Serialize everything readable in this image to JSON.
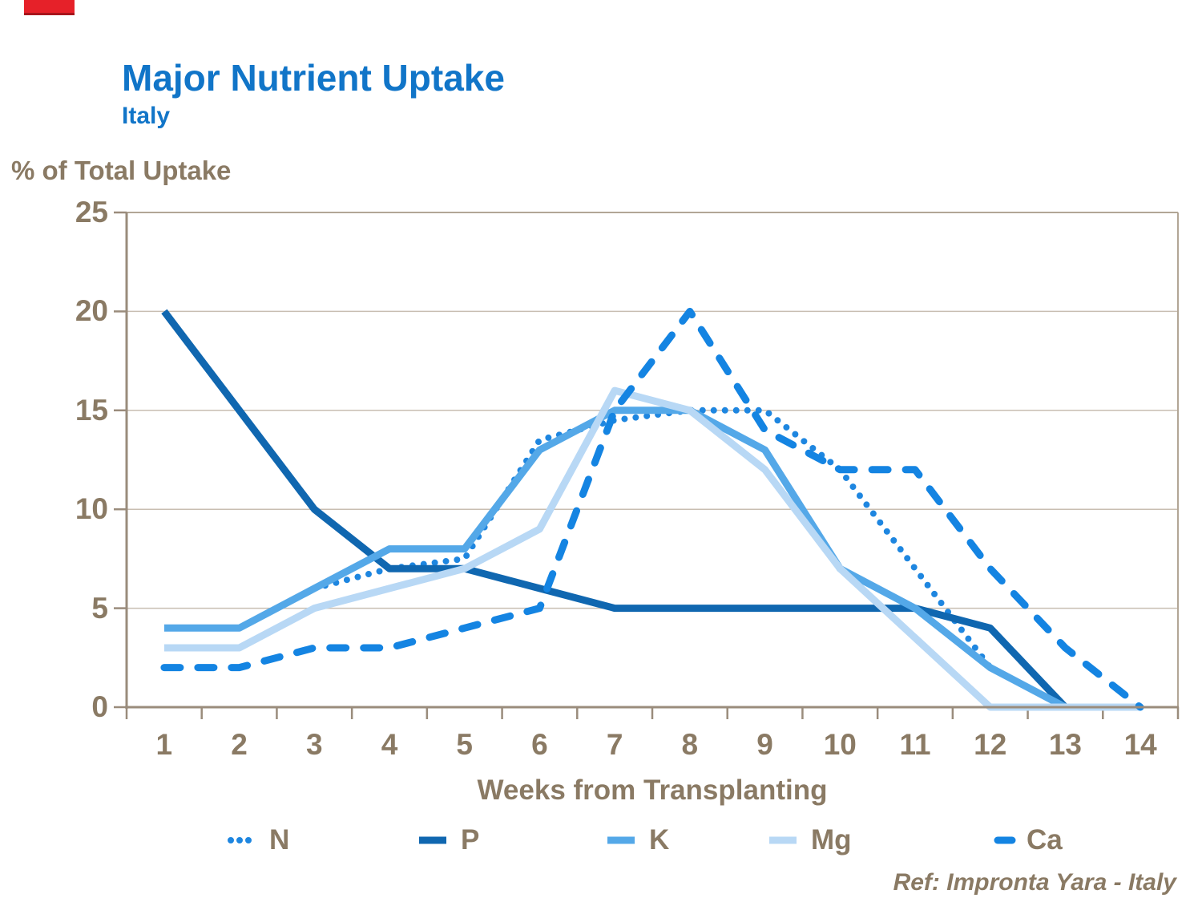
{
  "header": {
    "title": "Major Nutrient Uptake",
    "subtitle": "Italy"
  },
  "axes": {
    "y_title": "% of Total Uptake",
    "x_title": "Weeks from Transplanting",
    "y_ticks": [
      0,
      5,
      10,
      15,
      20,
      25
    ],
    "x_ticks": [
      1,
      2,
      3,
      4,
      5,
      6,
      7,
      8,
      9,
      10,
      11,
      12,
      13,
      14
    ]
  },
  "footer": {
    "ref": "Ref: Impronta Yara - Italy"
  },
  "colors": {
    "title_blue": "#1175c8",
    "label_tan": "#8a7a64",
    "axis_line": "#9a8c7c",
    "plot_border": "#b2a696",
    "gridline": "#c8beb2",
    "red_bar": "#e62129",
    "n_blue": "#1e86e0",
    "p_dark_blue": "#1067b0",
    "k_blue": "#54a8e8",
    "mg_light_blue": "#b8d8f5",
    "ca_blue": "#1484e2"
  },
  "chart_data": {
    "type": "line",
    "title": "Major Nutrient Uptake",
    "subtitle": "Italy",
    "xlabel": "Weeks from Transplanting",
    "ylabel": "% of Total Uptake",
    "xlim": [
      0.5,
      14.5
    ],
    "ylim": [
      0,
      25
    ],
    "grid": "horizontal gridlines every 5",
    "legend_position": "bottom",
    "series": [
      {
        "name": "N",
        "style": "dotted",
        "color": "#1e86e0",
        "points": [
          [
            3,
            6
          ],
          [
            4,
            7
          ],
          [
            5,
            7.5
          ],
          [
            6,
            13.5
          ],
          [
            7,
            14.5
          ],
          [
            8,
            15
          ],
          [
            9,
            15
          ],
          [
            10,
            12
          ],
          [
            11,
            7
          ],
          [
            12,
            2
          ],
          [
            13,
            0
          ]
        ]
      },
      {
        "name": "P",
        "style": "solid",
        "color": "#1067b0",
        "points": [
          [
            1,
            20
          ],
          [
            2,
            15
          ],
          [
            3,
            10
          ],
          [
            4,
            7
          ],
          [
            5,
            7
          ],
          [
            6,
            6
          ],
          [
            7,
            5
          ],
          [
            8,
            5
          ],
          [
            9,
            5
          ],
          [
            10,
            5
          ],
          [
            11,
            5
          ],
          [
            12,
            4
          ],
          [
            13,
            0
          ]
        ]
      },
      {
        "name": "K",
        "style": "solid",
        "color": "#54a8e8",
        "points": [
          [
            1,
            4
          ],
          [
            2,
            4
          ],
          [
            3,
            6
          ],
          [
            4,
            8
          ],
          [
            5,
            8
          ],
          [
            6,
            13
          ],
          [
            7,
            15
          ],
          [
            8,
            15
          ],
          [
            9,
            13
          ],
          [
            10,
            7
          ],
          [
            11,
            5
          ],
          [
            12,
            2
          ],
          [
            13,
            0
          ]
        ]
      },
      {
        "name": "Mg",
        "style": "solid",
        "color": "#b8d8f5",
        "points": [
          [
            1,
            3
          ],
          [
            2,
            3
          ],
          [
            3,
            5
          ],
          [
            4,
            6
          ],
          [
            5,
            7
          ],
          [
            6,
            9
          ],
          [
            7,
            16
          ],
          [
            8,
            15
          ],
          [
            9,
            12
          ],
          [
            10,
            7
          ],
          [
            11,
            3.5
          ],
          [
            12,
            0
          ],
          [
            13,
            0
          ],
          [
            14,
            0
          ]
        ]
      },
      {
        "name": "Ca",
        "style": "dashed",
        "color": "#1484e2",
        "points": [
          [
            1,
            2
          ],
          [
            2,
            2
          ],
          [
            3,
            3
          ],
          [
            4,
            3
          ],
          [
            5,
            4
          ],
          [
            6,
            5
          ],
          [
            7,
            15
          ],
          [
            8,
            20
          ],
          [
            9,
            14
          ],
          [
            10,
            12
          ],
          [
            11,
            12
          ],
          [
            12,
            7
          ],
          [
            13,
            3
          ],
          [
            14,
            0
          ]
        ]
      }
    ]
  }
}
